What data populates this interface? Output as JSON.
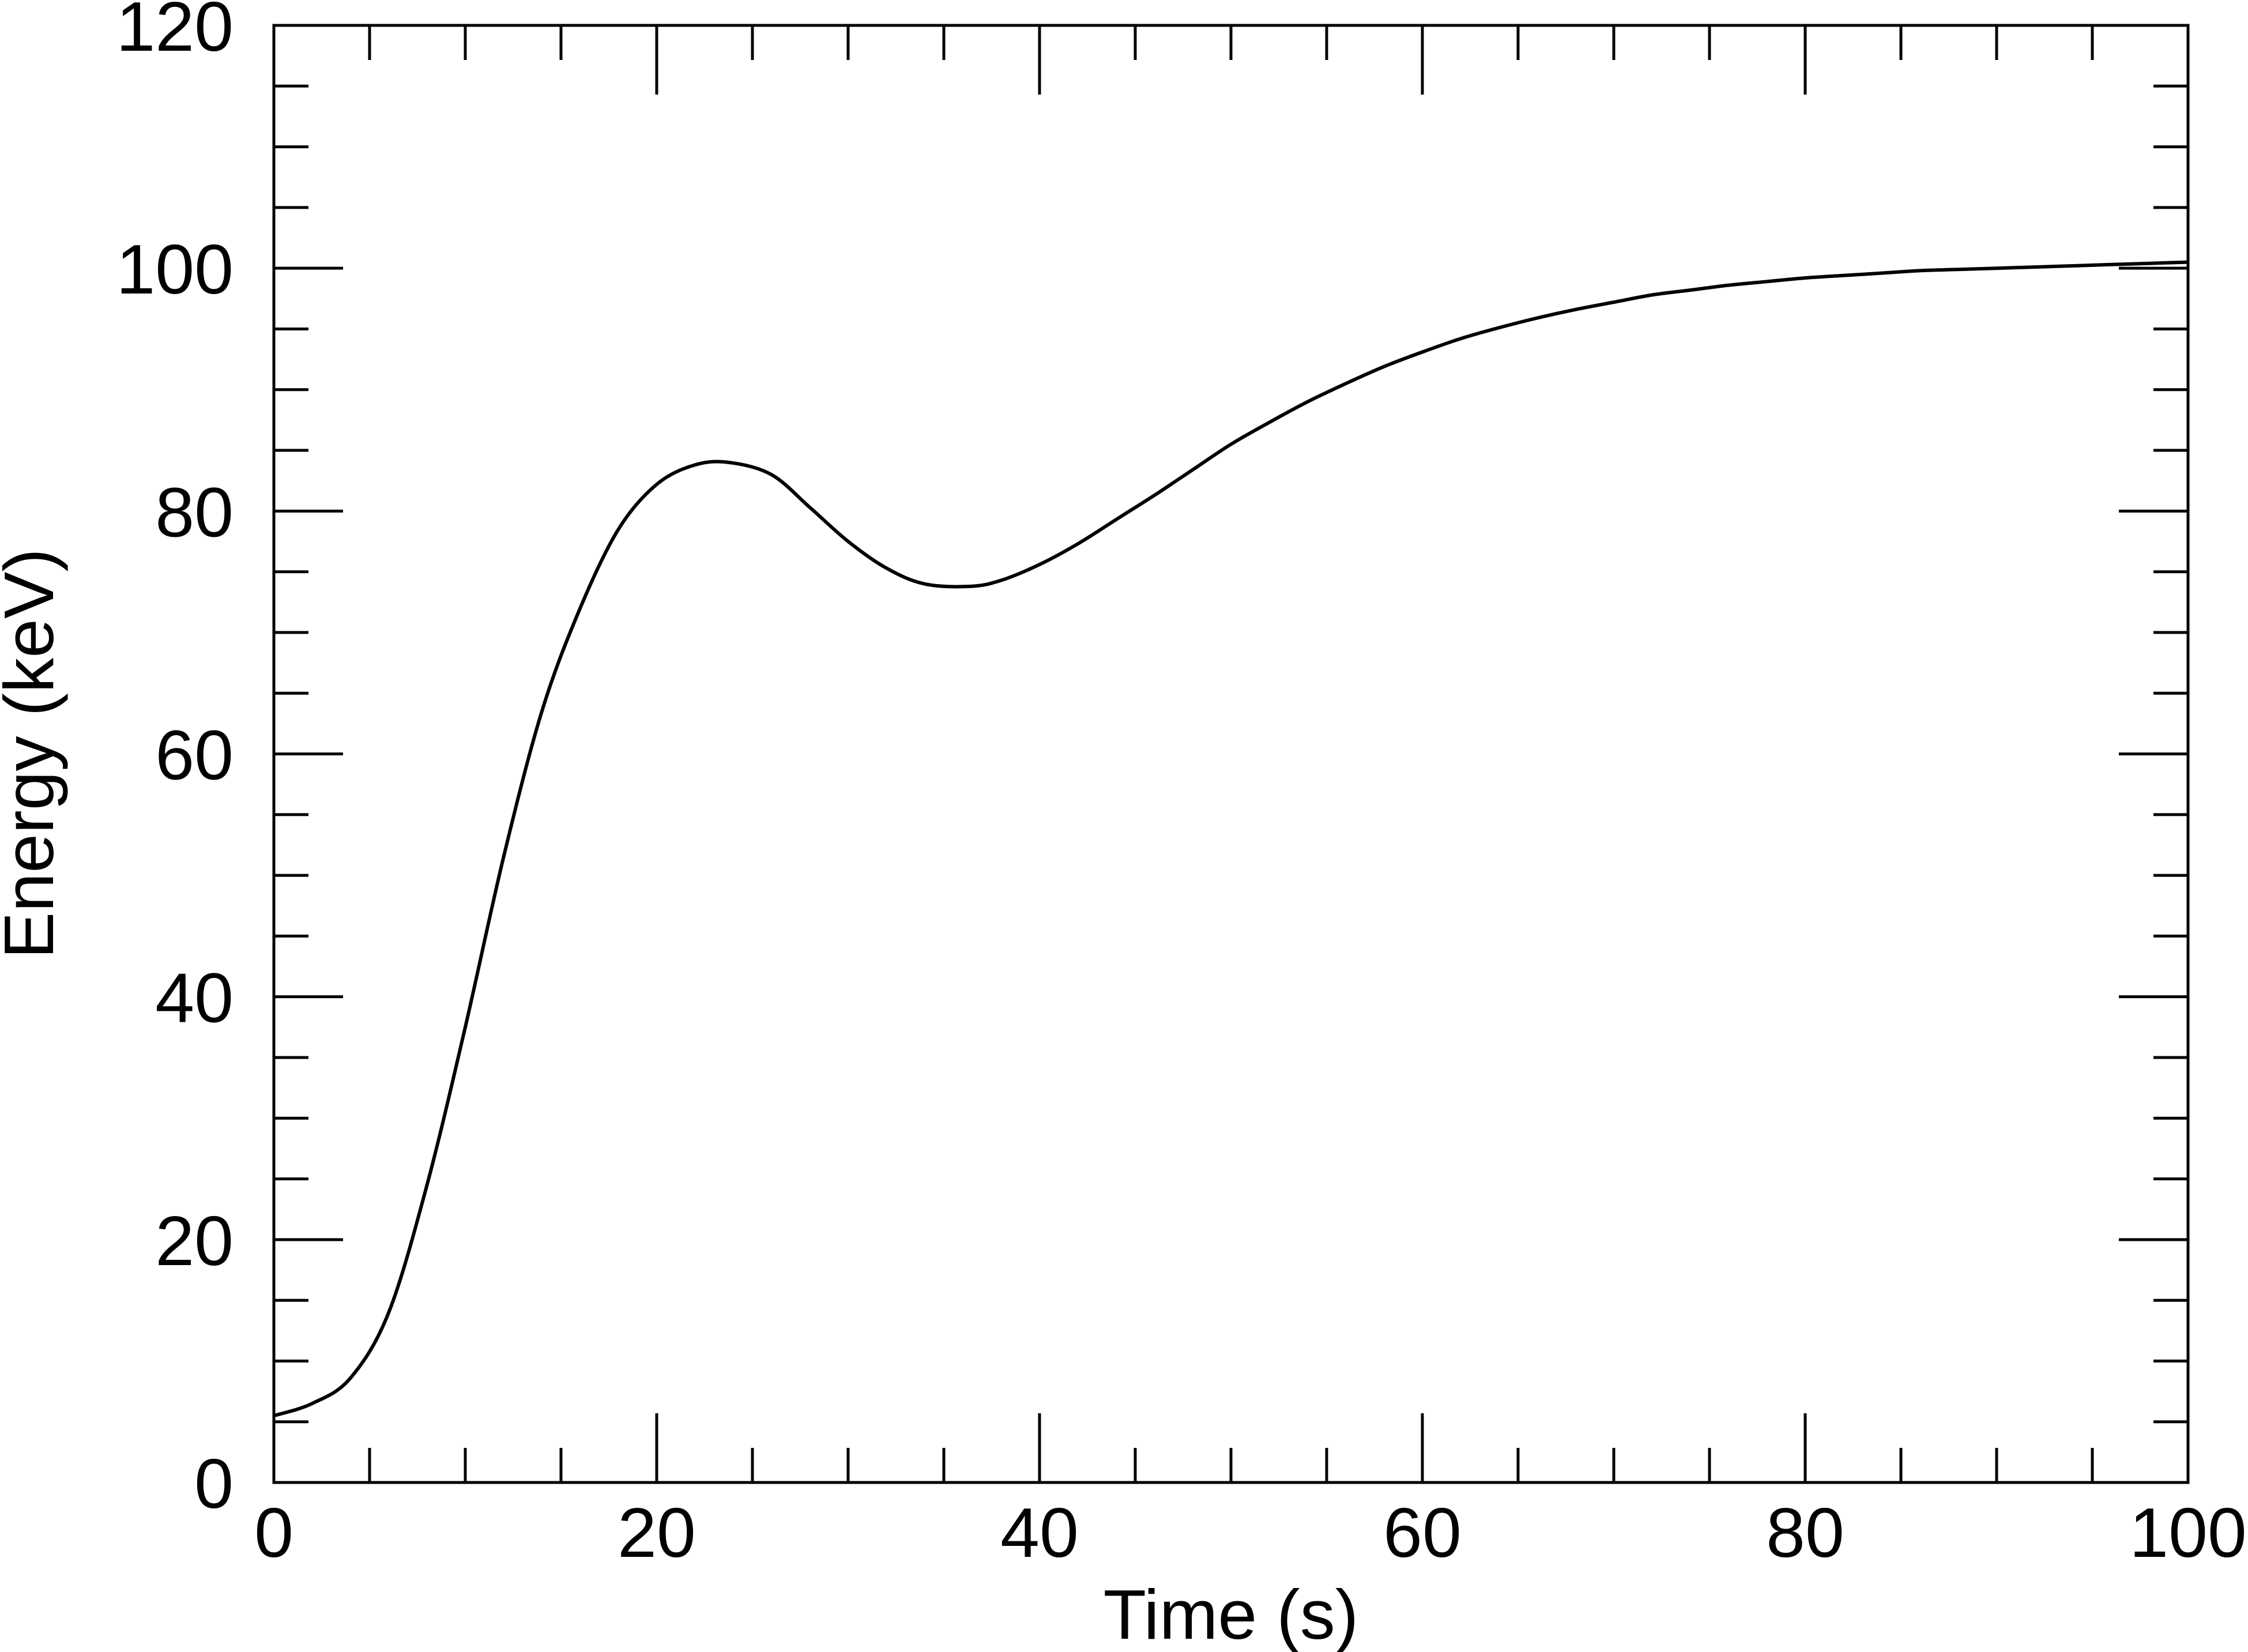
{
  "chart_data": {
    "type": "line",
    "title": "",
    "xlabel": "Time (s)",
    "ylabel": "Energy (keV)",
    "xlim": [
      0,
      100
    ],
    "ylim": [
      0,
      120
    ],
    "x_ticks": [
      0,
      20,
      40,
      60,
      80,
      100
    ],
    "y_ticks": [
      0,
      20,
      40,
      60,
      80,
      100,
      120
    ],
    "x_tick_labels": [
      "0",
      "20",
      "40",
      "60",
      "80",
      "100"
    ],
    "y_tick_labels": [
      "0",
      "20",
      "40",
      "60",
      "80",
      "100",
      "120"
    ],
    "x_minor_step": 5,
    "y_minor_step": 5,
    "grid": false,
    "line_color": "#000000",
    "series": [
      {
        "x": [
          0,
          2,
          4,
          6,
          8,
          10,
          12,
          14,
          16,
          18,
          20,
          22,
          23.8,
          26,
          28,
          30,
          32,
          34,
          36.4,
          38,
          40,
          42,
          44,
          46,
          48,
          50,
          52,
          54,
          56,
          58,
          60,
          62,
          64,
          66,
          68,
          70,
          72,
          74,
          76,
          78,
          80,
          82,
          84,
          86,
          88,
          90,
          92,
          94,
          96,
          98,
          100
        ],
        "y": [
          5.5,
          6.5,
          8.6,
          14.0,
          24.5,
          37.5,
          51.5,
          63.5,
          72.0,
          78.5,
          82.2,
          83.8,
          84.0,
          83.0,
          80.3,
          77.5,
          75.3,
          74.0,
          73.8,
          74.3,
          75.6,
          77.3,
          79.3,
          81.3,
          83.4,
          85.5,
          87.3,
          89.0,
          90.5,
          91.9,
          93.1,
          94.2,
          95.1,
          95.9,
          96.6,
          97.2,
          97.8,
          98.2,
          98.6,
          98.9,
          99.2,
          99.4,
          99.6,
          99.8,
          99.9,
          100.0,
          100.1,
          100.2,
          100.3,
          100.4,
          100.5
        ]
      }
    ]
  }
}
